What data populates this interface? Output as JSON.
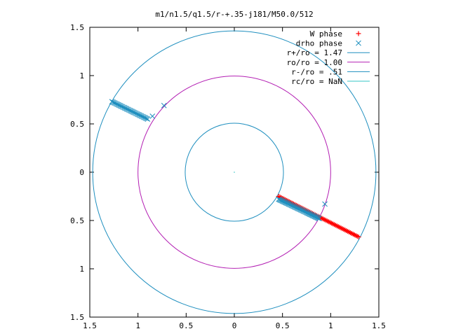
{
  "chart_data": {
    "type": "scatter",
    "title": "m1/n1.5/q1.5/r-+.35-j181/M50.0/512",
    "xlim": [
      -1.5,
      1.5
    ],
    "ylim": [
      -1.5,
      1.5
    ],
    "x_tick_labels": [
      "1.5",
      "1",
      "0.5",
      "0",
      "0.5",
      "1",
      "1.5"
    ],
    "y_tick_labels": [
      "1.5",
      "1",
      "0.5",
      "0",
      "0.5",
      "1",
      "1.5"
    ],
    "tick_values": [
      -1.5,
      -1,
      -0.5,
      0,
      0.5,
      1,
      1.5
    ],
    "grid": false,
    "legend_position": "top-right",
    "circles": [
      {
        "name": "r+/ro = 1.47",
        "radius": 1.47,
        "color": "#1f8fbf"
      },
      {
        "name": "ro/ro = 1.00",
        "radius": 1.0,
        "color": "#b31fb3"
      },
      {
        "name": "r-/ro = .51",
        "radius": 0.51,
        "color": "#1f8fbf"
      },
      {
        "name": "rc/ro = NaN",
        "radius": null,
        "color": "#36c6c6"
      }
    ],
    "series": [
      {
        "name": "W phase",
        "marker": "+",
        "color": "#ff0000",
        "segments": [
          {
            "from": [
              0.46,
              -0.25
            ],
            "to": [
              1.29,
              -0.67
            ],
            "count": 60
          }
        ]
      },
      {
        "name": "drho phase",
        "marker": "x",
        "color": "#1f8fbf",
        "segments": [
          {
            "from": [
              -1.27,
              0.73
            ],
            "to": [
              -0.9,
              0.55
            ],
            "count": 35
          },
          {
            "from": [
              0.46,
              -0.28
            ],
            "to": [
              0.88,
              -0.48
            ],
            "count": 45
          }
        ],
        "points": [
          [
            -0.73,
            0.69
          ],
          [
            -0.85,
            0.58
          ],
          [
            0.94,
            -0.33
          ]
        ]
      }
    ],
    "origin_marker": [
      0,
      0
    ]
  }
}
